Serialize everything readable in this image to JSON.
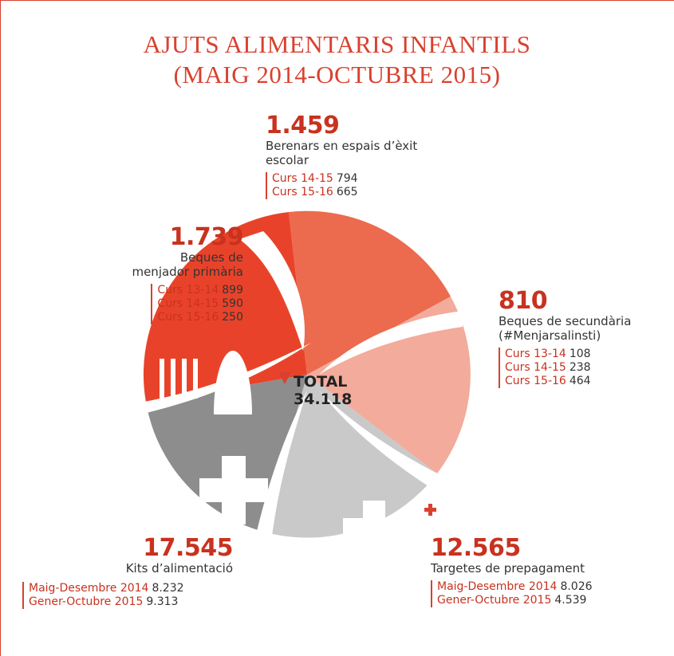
{
  "header": {
    "title_lines": [
      "AJUTS ALIMENTARIS INFANTILS",
      "(MAIG 2014-OCTUBRE 2015)"
    ]
  },
  "total": {
    "label": "TOTAL",
    "value": "34.118"
  },
  "segments": [
    {
      "value": "1.459",
      "label_lines": [
        "Berenars en espais d’èxit",
        "escolar"
      ],
      "items": [
        {
          "label": "Curs 14-15",
          "value": "794"
        },
        {
          "label": "Curs 15-16",
          "value": "665"
        }
      ]
    },
    {
      "value": "1.739",
      "label_lines": [
        "Beques de",
        "menjador primària"
      ],
      "items": [
        {
          "label": "Curs 13-14",
          "value": "899"
        },
        {
          "label": "Curs 14-15",
          "value": "590"
        },
        {
          "label": "Curs 15-16",
          "value": "250"
        }
      ]
    },
    {
      "value": "810",
      "label_lines": [
        "Beques de secundària",
        "(#Menjarsalinsti)"
      ],
      "items": [
        {
          "label": "Curs 13-14",
          "value": "108"
        },
        {
          "label": "Curs 14-15",
          "value": "238"
        },
        {
          "label": "Curs 15-16",
          "value": "464"
        }
      ]
    },
    {
      "value": "17.545",
      "label_lines": [
        "Kits d’alimentació"
      ],
      "items": [
        {
          "label": "Maig-Desembre 2014",
          "value": "8.232"
        },
        {
          "label": "Gener-Octubre 2015",
          "value": "9.313"
        }
      ]
    },
    {
      "value": "12.565",
      "label_lines": [
        "Targetes de prepagament"
      ],
      "items": [
        {
          "label": "Maig-Desembre 2014",
          "value": "8.026"
        },
        {
          "label": "Gener-Octubre 2015",
          "value": "4.539"
        }
      ]
    }
  ]
}
